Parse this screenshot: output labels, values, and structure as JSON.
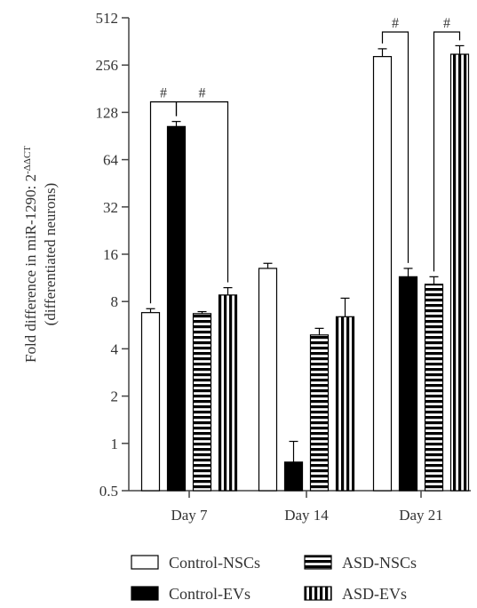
{
  "chart_data": {
    "type": "bar",
    "title": "",
    "ylabel_line1": "Fold difference in miR-1290: 2",
    "ylabel_sup": "-ΔΔCT",
    "ylabel_line2": "(differentiated neurons)",
    "xlabel": "",
    "y_scale": "log2",
    "ylim": [
      0.5,
      512
    ],
    "yticks": [
      "0.5",
      "1",
      "2",
      "4",
      "8",
      "16",
      "32",
      "64",
      "128",
      "256",
      "512"
    ],
    "categories": [
      "Day 7",
      "Day 14",
      "Day 21"
    ],
    "series": [
      {
        "name": "Control-NSCs",
        "pattern": "open",
        "values": [
          6.8,
          13,
          290
        ],
        "errors": [
          0.4,
          1.0,
          35
        ]
      },
      {
        "name": "Control-EVs",
        "pattern": "solid",
        "values": [
          104,
          0.76,
          11.5
        ],
        "errors": [
          8,
          0.27,
          1.5
        ]
      },
      {
        "name": "ASD-NSCs",
        "pattern": "horizontal-stripes",
        "values": [
          6.7,
          4.9,
          10.3
        ],
        "errors": [
          0.2,
          0.5,
          1.2
        ]
      },
      {
        "name": "ASD-EVs",
        "pattern": "vertical-stripes",
        "values": [
          8.8,
          6.4,
          300
        ],
        "errors": [
          1.0,
          2.0,
          40
        ]
      }
    ],
    "significance": [
      {
        "group": 0,
        "from": 0,
        "to": 1,
        "label": "#"
      },
      {
        "group": 0,
        "from": 1,
        "to": 3,
        "label": "#"
      },
      {
        "group": 2,
        "from": 0,
        "to": 1,
        "label": "#"
      },
      {
        "group": 2,
        "from": 2,
        "to": 3,
        "label": "#"
      }
    ],
    "grid": false,
    "legend_position": "bottom"
  }
}
